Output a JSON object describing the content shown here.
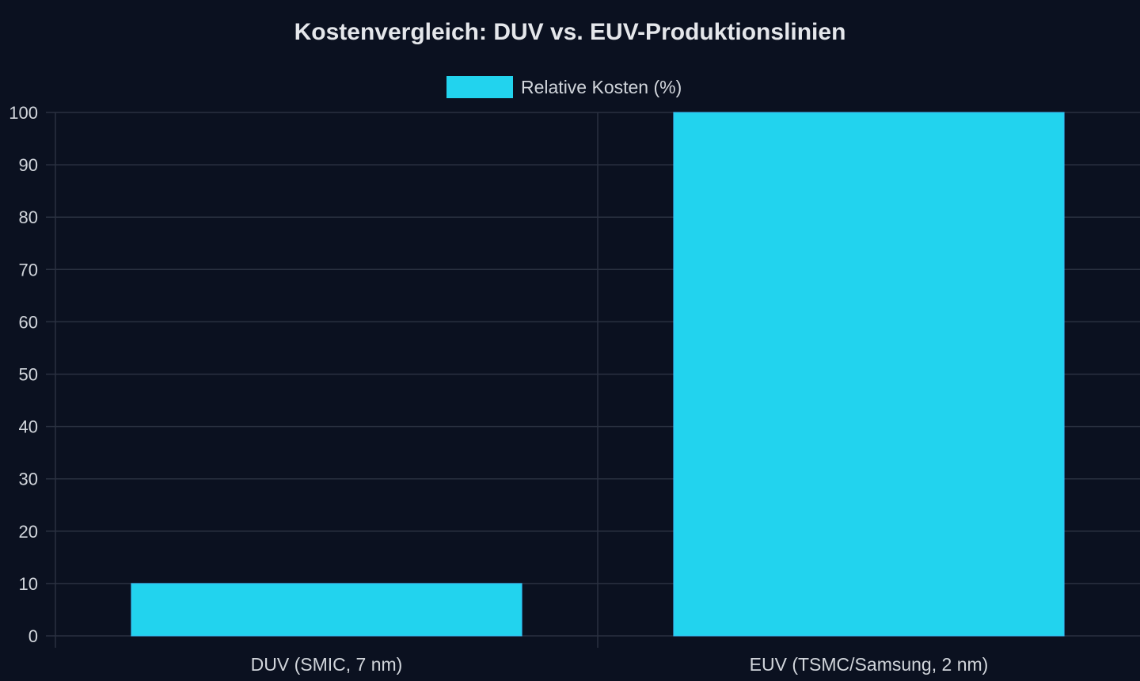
{
  "chart_data": {
    "type": "bar",
    "title": "Kostenvergleich: DUV vs. EUV-Produktionslinien",
    "categories": [
      "DUV (SMIC, 7 nm)",
      "EUV (TSMC/Samsung, 2 nm)"
    ],
    "series": [
      {
        "name": "Relative Kosten (%)",
        "values": [
          10,
          100
        ],
        "color": "#22d3ee"
      }
    ],
    "xlabel": "",
    "ylabel": "",
    "ylim": [
      0,
      100
    ],
    "yticks": [
      0,
      10,
      20,
      30,
      40,
      50,
      60,
      70,
      80,
      90,
      100
    ],
    "grid": true,
    "legend_position": "top-center"
  },
  "theme": {
    "background": "#0b1120",
    "grid_color": "#2a3140",
    "text_color": "#d1d5db",
    "title_color": "#e5e7eb"
  }
}
